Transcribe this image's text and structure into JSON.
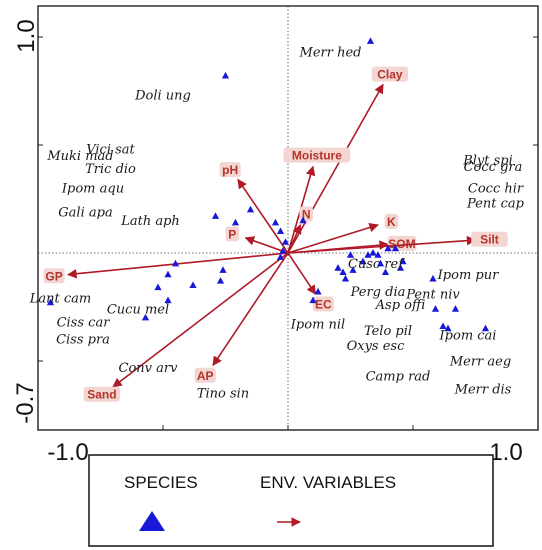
{
  "chart_data": {
    "type": "scatter",
    "xlim": [
      -1.0,
      1.0
    ],
    "ylim": [
      -0.7,
      1.0
    ],
    "x_ticks": [
      "-1.0",
      "1.0"
    ],
    "y_ticks": [
      "1.0",
      "-0.7"
    ],
    "grid": false,
    "legend": {
      "placement": "bottom",
      "species_label": "SPECIES",
      "env_label": "ENV. VARIABLES"
    },
    "colors": {
      "species": "#1818d8",
      "env": "#b01a28",
      "env_text": "#b4332a",
      "axis": "#222222"
    },
    "species_points": [
      {
        "x": 0.33,
        "y": 0.98
      },
      {
        "x": -0.25,
        "y": 0.82
      },
      {
        "x": -0.15,
        "y": 0.2
      },
      {
        "x": -0.29,
        "y": 0.17
      },
      {
        "x": -0.21,
        "y": 0.14
      },
      {
        "x": -0.05,
        "y": 0.14
      },
      {
        "x": 0.06,
        "y": 0.15
      },
      {
        "x": -0.03,
        "y": 0.1
      },
      {
        "x": -0.01,
        "y": 0.05
      },
      {
        "x": -0.02,
        "y": 0.01
      },
      {
        "x": -0.45,
        "y": -0.05
      },
      {
        "x": -0.48,
        "y": -0.1
      },
      {
        "x": -0.26,
        "y": -0.08
      },
      {
        "x": -0.27,
        "y": -0.13
      },
      {
        "x": -0.03,
        "y": -0.02
      },
      {
        "x": -0.38,
        "y": -0.15
      },
      {
        "x": -0.52,
        "y": -0.16
      },
      {
        "x": -0.48,
        "y": -0.22
      },
      {
        "x": -0.57,
        "y": -0.3
      },
      {
        "x": -0.95,
        "y": -0.23
      },
      {
        "x": 0.12,
        "y": -0.18
      },
      {
        "x": 0.1,
        "y": -0.22
      },
      {
        "x": 0.2,
        "y": -0.07
      },
      {
        "x": 0.22,
        "y": -0.09
      },
      {
        "x": 0.23,
        "y": -0.12
      },
      {
        "x": 0.26,
        "y": -0.08
      },
      {
        "x": 0.3,
        "y": -0.04
      },
      {
        "x": 0.32,
        "y": -0.01
      },
      {
        "x": 0.36,
        "y": -0.01
      },
      {
        "x": 0.34,
        "y": 0.0
      },
      {
        "x": 0.37,
        "y": -0.05
      },
      {
        "x": 0.39,
        "y": -0.09
      },
      {
        "x": 0.25,
        "y": -0.01
      },
      {
        "x": 0.4,
        "y": 0.02
      },
      {
        "x": 0.43,
        "y": 0.02
      },
      {
        "x": 0.45,
        "y": -0.07
      },
      {
        "x": 0.58,
        "y": -0.12
      },
      {
        "x": 0.46,
        "y": -0.04
      },
      {
        "x": 0.59,
        "y": -0.26
      },
      {
        "x": 0.62,
        "y": -0.34
      },
      {
        "x": 0.64,
        "y": -0.35
      },
      {
        "x": 0.79,
        "y": -0.35
      },
      {
        "x": 0.67,
        "y": -0.26
      }
    ],
    "species_labels": [
      {
        "text": "Merr hed",
        "x": 0.17,
        "y": 0.91
      },
      {
        "text": "Doli ung",
        "x": -0.5,
        "y": 0.71
      },
      {
        "text": "Vici sat",
        "x": -0.71,
        "y": 0.46
      },
      {
        "text": "Muki mad",
        "x": -0.83,
        "y": 0.43
      },
      {
        "text": "Tric dio",
        "x": -0.71,
        "y": 0.37
      },
      {
        "text": "Ipom aqu",
        "x": -0.78,
        "y": 0.28
      },
      {
        "text": "Gali apa",
        "x": -0.81,
        "y": 0.17
      },
      {
        "text": "Lath aph",
        "x": -0.55,
        "y": 0.13
      },
      {
        "text": "Blyt spi",
        "x": 0.8,
        "y": 0.41
      },
      {
        "text": "Cocc gra",
        "x": 0.82,
        "y": 0.38
      },
      {
        "text": "Cocc hir",
        "x": 0.83,
        "y": 0.28
      },
      {
        "text": "Pent cap",
        "x": 0.83,
        "y": 0.21
      },
      {
        "text": "Lant cam",
        "x": -0.91,
        "y": -0.23
      },
      {
        "text": "Cucu mel",
        "x": -0.6,
        "y": -0.28
      },
      {
        "text": "Ciss car",
        "x": -0.82,
        "y": -0.34
      },
      {
        "text": "Ciss pra",
        "x": -0.82,
        "y": -0.42
      },
      {
        "text": "Conv arv",
        "x": -0.56,
        "y": -0.55
      },
      {
        "text": "Tino sin",
        "x": -0.26,
        "y": -0.67
      },
      {
        "text": "Cusc ref",
        "x": 0.35,
        "y": -0.07
      },
      {
        "text": "Ipom pur",
        "x": 0.72,
        "y": -0.12
      },
      {
        "text": "Perg dia",
        "x": 0.36,
        "y": -0.2
      },
      {
        "text": "Pent niv",
        "x": 0.58,
        "y": -0.21
      },
      {
        "text": "Asp offi",
        "x": 0.45,
        "y": -0.26
      },
      {
        "text": "Ipom nil",
        "x": 0.12,
        "y": -0.35
      },
      {
        "text": "Telo pil",
        "x": 0.4,
        "y": -0.38
      },
      {
        "text": "Ipom cai",
        "x": 0.72,
        "y": -0.4
      },
      {
        "text": "Oxys esc",
        "x": 0.35,
        "y": -0.45
      },
      {
        "text": "Merr aeg",
        "x": 0.77,
        "y": -0.52
      },
      {
        "text": "Camp rad",
        "x": 0.44,
        "y": -0.59
      },
      {
        "text": "Merr dis",
        "x": 0.78,
        "y": -0.65
      }
    ],
    "env_vectors": [
      {
        "name": "Clay",
        "x": 0.38,
        "y": 0.78
      },
      {
        "name": "Moisture",
        "x": 0.1,
        "y": 0.4
      },
      {
        "name": "pH",
        "x": -0.2,
        "y": 0.34
      },
      {
        "name": "N",
        "x": 0.05,
        "y": 0.13
      },
      {
        "name": "K",
        "x": 0.36,
        "y": 0.13
      },
      {
        "name": "P",
        "x": -0.17,
        "y": 0.07
      },
      {
        "name": "SOM",
        "x": 0.4,
        "y": 0.04
      },
      {
        "name": "Silt",
        "x": 0.75,
        "y": 0.06
      },
      {
        "name": "GP",
        "x": -0.88,
        "y": -0.1
      },
      {
        "name": "EC",
        "x": 0.11,
        "y": -0.19
      },
      {
        "name": "AP",
        "x": -0.3,
        "y": -0.52
      },
      {
        "name": "Sand",
        "x": -0.7,
        "y": -0.62
      }
    ]
  }
}
